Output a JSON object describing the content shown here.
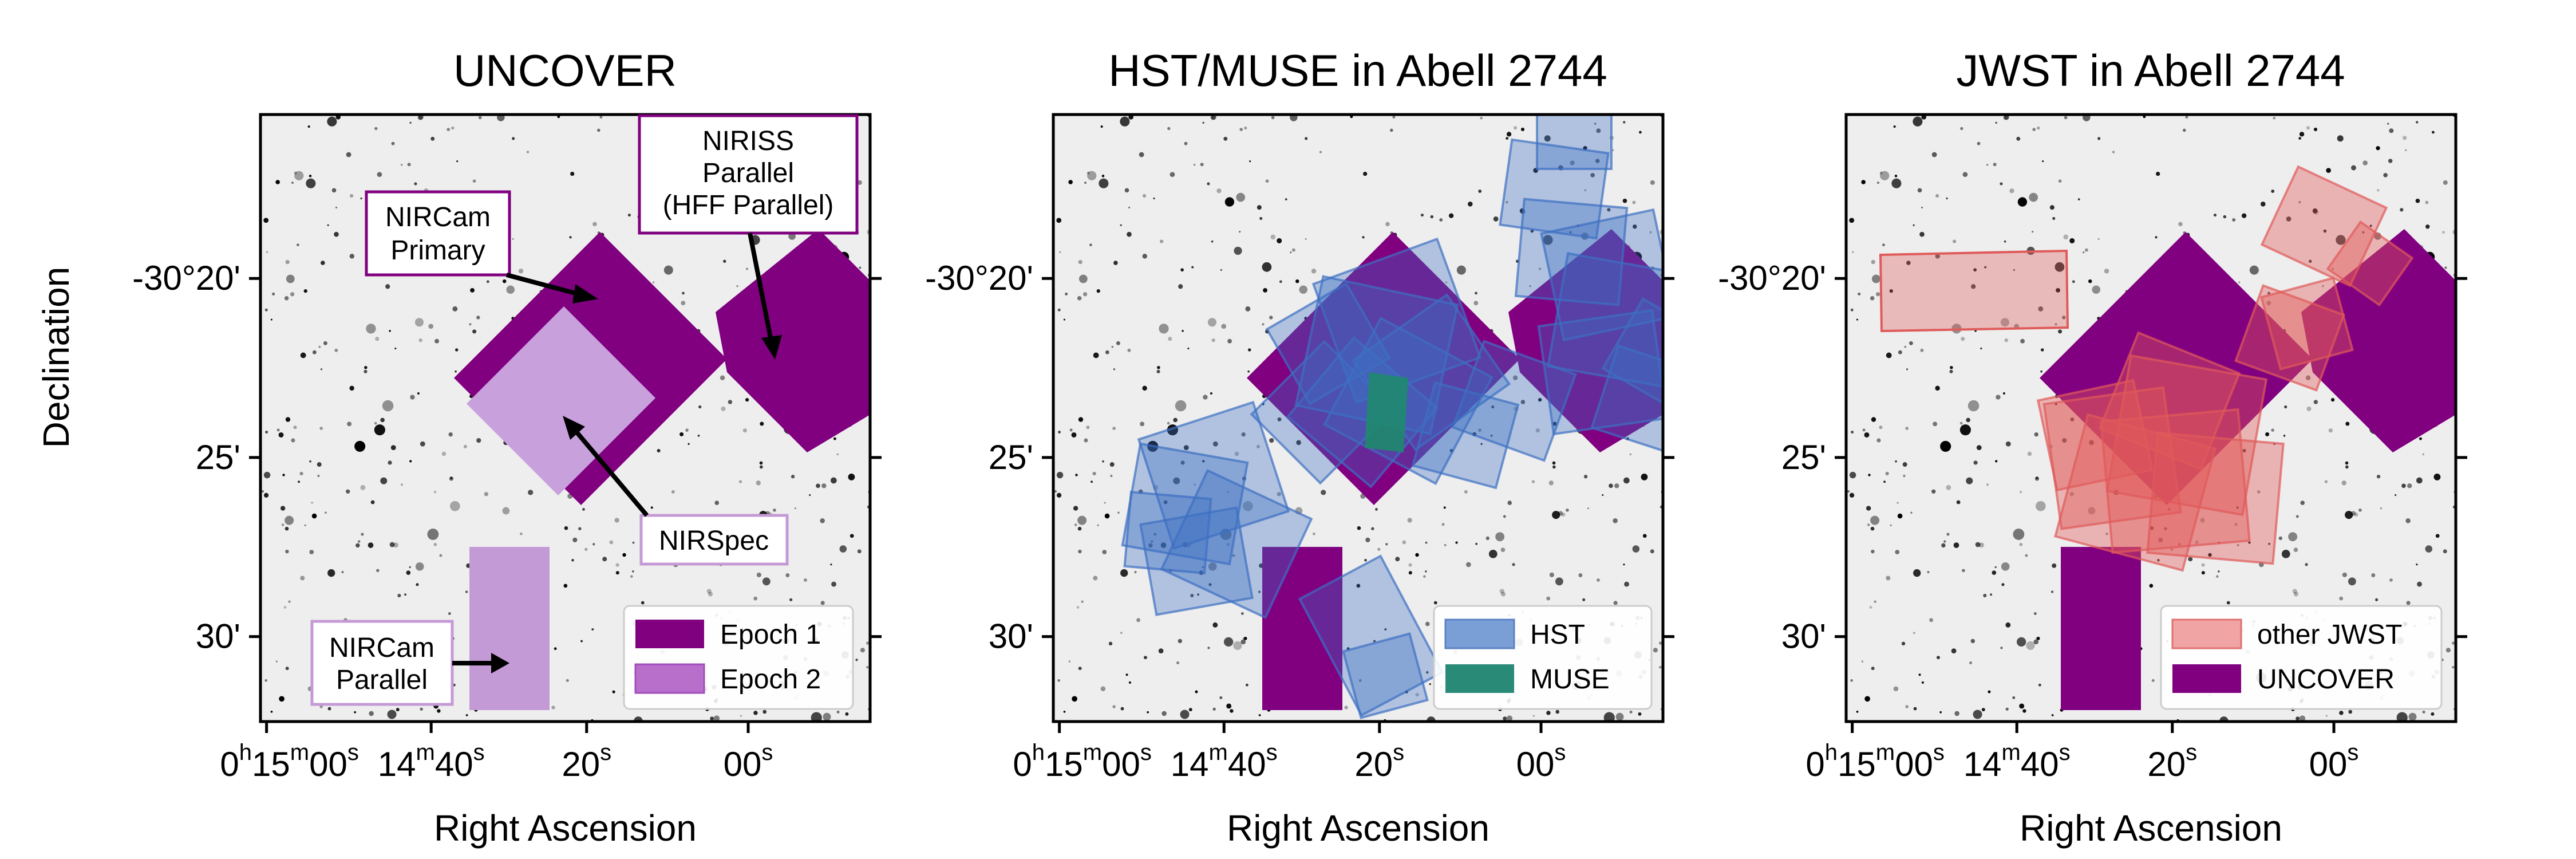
{
  "chart_data": [
    {
      "type": "area",
      "title": "UNCOVER",
      "xlabel": "Right Ascension",
      "ylabel": "Declination",
      "x_ticks": [
        "15m00s",
        "14m40s",
        "20s",
        "00s"
      ],
      "x_tick_prefix": "0h",
      "y_ticks": [
        "-30°20'",
        "25'",
        "30'"
      ],
      "annotations": [
        "NIRCam Primary",
        "NIRISS Parallel (HFF Parallel)",
        "NIRSpec",
        "NIRCam Parallel"
      ],
      "legend": {
        "position": "lower-right",
        "entries": [
          {
            "name": "Epoch 1",
            "color": "#800080"
          },
          {
            "name": "Epoch 2",
            "color": "#c48fd6"
          }
        ]
      }
    },
    {
      "type": "area",
      "title": "HST/MUSE in Abell 2744",
      "xlabel": "Right Ascension",
      "x_ticks": [
        "15m00s",
        "14m40s",
        "20s",
        "00s"
      ],
      "x_tick_prefix": "0h",
      "y_ticks": [
        "-30°20'",
        "25'",
        "30'"
      ],
      "legend": {
        "position": "lower-right",
        "entries": [
          {
            "name": "HST",
            "color": "#7a9fd6"
          },
          {
            "name": "MUSE",
            "color": "#2a8a78"
          }
        ]
      }
    },
    {
      "type": "area",
      "title": "JWST in Abell 2744",
      "xlabel": "Right Ascension",
      "x_ticks": [
        "15m00s",
        "14m40s",
        "20s",
        "00s"
      ],
      "x_tick_prefix": "0h",
      "y_ticks": [
        "-30°20'",
        "25'",
        "30'"
      ],
      "legend": {
        "position": "lower-right",
        "entries": [
          {
            "name": "other JWST",
            "color": "#e8888a"
          },
          {
            "name": "UNCOVER",
            "color": "#800080"
          }
        ]
      }
    }
  ],
  "colors": {
    "uncover": "#800080",
    "epoch2": "#c48fd6",
    "hst": "#3d6fc2",
    "muse": "#2a8a78",
    "other_jwst": "#e05a5a"
  }
}
